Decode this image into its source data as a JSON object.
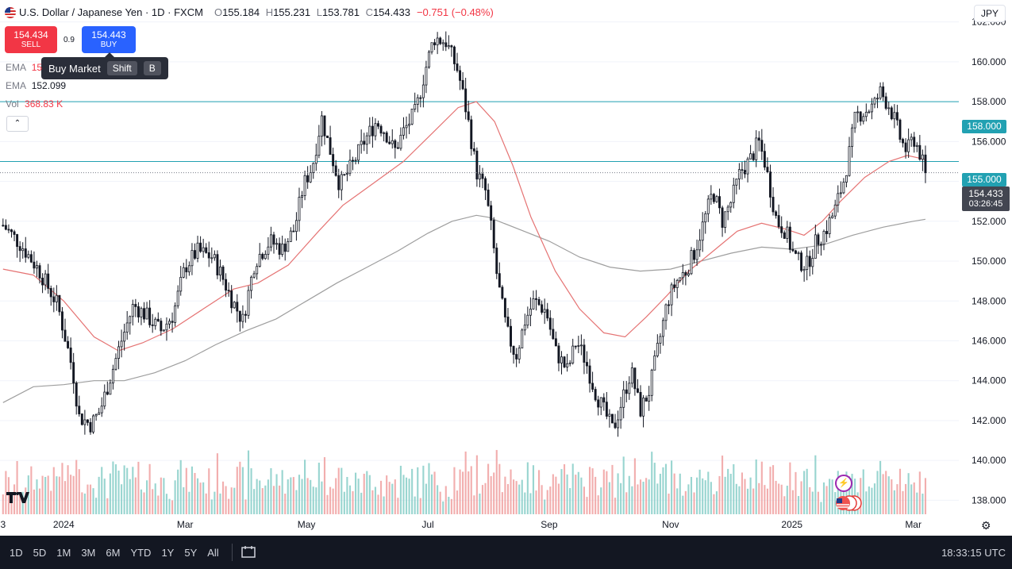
{
  "header": {
    "symbol": "U.S. Dollar / Japanese Yen · 1D · FXCM",
    "open_label": "O",
    "open": "155.184",
    "high_label": "H",
    "high": "155.231",
    "low_label": "L",
    "low": "153.781",
    "close_label": "C",
    "close": "154.433",
    "change": "−0.751 (−0.48%)"
  },
  "trade": {
    "sell_price": "154.434",
    "sell_label": "SELL",
    "spread": "0.9",
    "buy_price": "154.443",
    "buy_label": "BUY",
    "tooltip": "Buy Market",
    "key1": "Shift",
    "key2": "B"
  },
  "indicators": [
    {
      "name": "EMA",
      "value": "15",
      "color": "#f23645"
    },
    {
      "name": "EMA",
      "value": "152.099",
      "color": "#131722"
    },
    {
      "name": "Vol",
      "value": "368.83 K",
      "color": "#f23645"
    }
  ],
  "currency": "JPY",
  "price_labels": {
    "level_158": "158.000",
    "level_155": "155.000",
    "last": "154.433",
    "countdown": "03:26:45"
  },
  "timeframes": [
    "1D",
    "5D",
    "1M",
    "3M",
    "6M",
    "YTD",
    "1Y",
    "5Y",
    "All"
  ],
  "clock": "18:33:15 UTC",
  "icons": {
    "settings": "gear-icon",
    "compare": "compare-icon",
    "logo": "tradingview-logo",
    "alert": "flash-icon",
    "events": "us-flags-icon"
  },
  "colors": {
    "up": "#131722",
    "down": "#131722",
    "ema_fast": "#e57373",
    "ema_slow": "#9e9e9e",
    "hline": "#22a1b2",
    "vol_up": "#80cbc4",
    "vol_down": "#ef9a9a"
  },
  "chart_data": {
    "type": "candlestick",
    "y_ticks": [
      "162.000",
      "160.000",
      "158.000",
      "156.000",
      "154.000",
      "152.000",
      "150.000",
      "148.000",
      "146.000",
      "144.000",
      "142.000",
      "140.000",
      "138.000"
    ],
    "y_range": [
      137.3,
      163.1
    ],
    "x_ticks": [
      {
        "label": "3",
        "month": 0.0
      },
      {
        "label": "2024",
        "month": 1.0
      },
      {
        "label": "Mar",
        "month": 3.0
      },
      {
        "label": "May",
        "month": 5.0
      },
      {
        "label": "Jul",
        "month": 7.0
      },
      {
        "label": "Sep",
        "month": 9.0
      },
      {
        "label": "Nov",
        "month": 11.0
      },
      {
        "label": "2025",
        "month": 13.0
      },
      {
        "label": "Mar",
        "month": 15.0
      }
    ],
    "horizontal_levels": [
      158.0,
      155.0
    ],
    "last_price": 154.433,
    "price_path": [
      [
        0.0,
        151.8
      ],
      [
        0.3,
        150.8
      ],
      [
        0.6,
        149.5
      ],
      [
        0.9,
        147.8
      ],
      [
        1.15,
        144.5
      ],
      [
        1.25,
        142.2
      ],
      [
        1.45,
        141.8
      ],
      [
        1.6,
        142.5
      ],
      [
        1.75,
        144.0
      ],
      [
        1.95,
        146.0
      ],
      [
        2.15,
        147.8
      ],
      [
        2.35,
        147.3
      ],
      [
        2.6,
        146.5
      ],
      [
        2.8,
        147.3
      ],
      [
        3.0,
        149.7
      ],
      [
        3.2,
        150.5
      ],
      [
        3.45,
        150.2
      ],
      [
        3.6,
        149.3
      ],
      [
        3.75,
        148.2
      ],
      [
        3.95,
        147.0
      ],
      [
        4.15,
        150.0
      ],
      [
        4.4,
        151.0
      ],
      [
        4.6,
        150.6
      ],
      [
        4.8,
        151.6
      ],
      [
        4.95,
        153.8
      ],
      [
        5.1,
        154.8
      ],
      [
        5.25,
        157.2
      ],
      [
        5.35,
        156.0
      ],
      [
        5.55,
        153.8
      ],
      [
        5.75,
        154.8
      ],
      [
        5.95,
        156.0
      ],
      [
        6.15,
        157.0
      ],
      [
        6.3,
        156.5
      ],
      [
        6.45,
        155.5
      ],
      [
        6.6,
        156.5
      ],
      [
        6.8,
        157.5
      ],
      [
        6.95,
        159.5
      ],
      [
        7.1,
        161.2
      ],
      [
        7.3,
        161.0
      ],
      [
        7.5,
        159.5
      ],
      [
        7.65,
        157.3
      ],
      [
        7.8,
        154.5
      ],
      [
        7.95,
        153.5
      ],
      [
        8.05,
        151.5
      ],
      [
        8.15,
        149.0
      ],
      [
        8.3,
        146.5
      ],
      [
        8.45,
        145.2
      ],
      [
        8.6,
        147.0
      ],
      [
        8.75,
        148.0
      ],
      [
        8.95,
        147.5
      ],
      [
        9.1,
        145.5
      ],
      [
        9.3,
        144.5
      ],
      [
        9.45,
        146.0
      ],
      [
        9.6,
        145.0
      ],
      [
        9.75,
        143.5
      ],
      [
        9.9,
        142.5
      ],
      [
        10.05,
        141.5
      ],
      [
        10.2,
        143.0
      ],
      [
        10.35,
        144.5
      ],
      [
        10.5,
        142.5
      ],
      [
        10.65,
        143.5
      ],
      [
        10.75,
        145.0
      ],
      [
        10.85,
        146.5
      ],
      [
        10.95,
        148.0
      ],
      [
        11.1,
        149.0
      ],
      [
        11.25,
        149.5
      ],
      [
        11.4,
        150.5
      ],
      [
        11.55,
        152.0
      ],
      [
        11.7,
        153.5
      ],
      [
        11.85,
        152.0
      ],
      [
        12.0,
        153.0
      ],
      [
        12.15,
        154.5
      ],
      [
        12.3,
        155.0
      ],
      [
        12.45,
        156.0
      ],
      [
        12.55,
        155.0
      ],
      [
        12.65,
        153.5
      ],
      [
        12.75,
        152.0
      ],
      [
        12.9,
        151.5
      ],
      [
        13.0,
        150.5
      ],
      [
        13.1,
        150.0
      ],
      [
        13.25,
        149.8
      ],
      [
        13.4,
        151.0
      ],
      [
        13.55,
        151.5
      ],
      [
        13.7,
        152.5
      ],
      [
        13.85,
        154.0
      ],
      [
        13.95,
        155.5
      ],
      [
        14.05,
        157.3
      ],
      [
        14.2,
        157.5
      ],
      [
        14.35,
        157.8
      ],
      [
        14.45,
        158.5
      ],
      [
        14.6,
        157.8
      ],
      [
        14.7,
        157.0
      ],
      [
        14.8,
        156.0
      ],
      [
        14.9,
        155.5
      ],
      [
        15.0,
        156.2
      ],
      [
        15.1,
        155.5
      ],
      [
        15.2,
        154.4
      ]
    ],
    "ema_fast_path": [
      [
        0.0,
        149.6
      ],
      [
        0.5,
        149.3
      ],
      [
        1.0,
        148.0
      ],
      [
        1.5,
        146.2
      ],
      [
        1.9,
        145.5
      ],
      [
        2.3,
        145.9
      ],
      [
        2.8,
        146.6
      ],
      [
        3.3,
        147.6
      ],
      [
        3.8,
        148.6
      ],
      [
        4.2,
        148.9
      ],
      [
        4.7,
        149.8
      ],
      [
        5.2,
        151.5
      ],
      [
        5.6,
        152.8
      ],
      [
        6.1,
        153.9
      ],
      [
        6.6,
        155.0
      ],
      [
        7.1,
        156.5
      ],
      [
        7.5,
        157.7
      ],
      [
        7.8,
        158.0
      ],
      [
        8.1,
        157.0
      ],
      [
        8.4,
        154.8
      ],
      [
        8.7,
        152.2
      ],
      [
        9.1,
        149.5
      ],
      [
        9.5,
        147.6
      ],
      [
        9.9,
        146.4
      ],
      [
        10.25,
        146.2
      ],
      [
        10.6,
        147.2
      ],
      [
        10.95,
        148.3
      ],
      [
        11.3,
        149.5
      ],
      [
        11.7,
        150.5
      ],
      [
        12.1,
        151.5
      ],
      [
        12.5,
        151.9
      ],
      [
        12.9,
        151.6
      ],
      [
        13.2,
        151.3
      ],
      [
        13.5,
        152.0
      ],
      [
        13.8,
        153.0
      ],
      [
        14.2,
        154.2
      ],
      [
        14.6,
        155.0
      ],
      [
        14.9,
        155.3
      ],
      [
        15.2,
        155.1
      ]
    ],
    "ema_slow_path": [
      [
        0.0,
        142.9
      ],
      [
        0.5,
        143.7
      ],
      [
        1.0,
        143.8
      ],
      [
        1.5,
        144.0
      ],
      [
        2.0,
        144.0
      ],
      [
        2.5,
        144.4
      ],
      [
        3.0,
        145.0
      ],
      [
        3.5,
        145.8
      ],
      [
        4.0,
        146.5
      ],
      [
        4.5,
        147.1
      ],
      [
        5.0,
        148.0
      ],
      [
        5.5,
        148.9
      ],
      [
        6.0,
        149.7
      ],
      [
        6.5,
        150.5
      ],
      [
        7.0,
        151.4
      ],
      [
        7.4,
        152.0
      ],
      [
        7.8,
        152.3
      ],
      [
        8.0,
        152.2
      ],
      [
        8.5,
        151.6
      ],
      [
        9.0,
        151.0
      ],
      [
        9.5,
        150.2
      ],
      [
        10.0,
        149.7
      ],
      [
        10.5,
        149.5
      ],
      [
        11.0,
        149.6
      ],
      [
        11.5,
        150.0
      ],
      [
        12.0,
        150.4
      ],
      [
        12.5,
        150.7
      ],
      [
        13.0,
        150.6
      ],
      [
        13.5,
        150.8
      ],
      [
        14.0,
        151.3
      ],
      [
        14.5,
        151.7
      ],
      [
        15.0,
        152.0
      ],
      [
        15.2,
        152.1
      ]
    ]
  }
}
